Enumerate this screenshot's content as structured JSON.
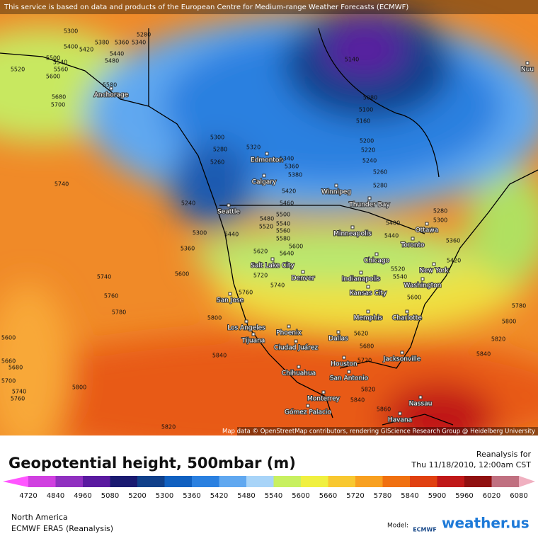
{
  "header": {
    "notice": "This service is based on data and products of the European Centre for Medium-range Weather Forecasts (ECMWF)"
  },
  "map": {
    "attribution": "Map data © OpenStreetMap contributors, rendering GIScience Research Group @ Heidelberg University",
    "cities": [
      "Anchorage",
      "Edmonton",
      "Calgary",
      "Winnipeg",
      "Seattle",
      "Thunder Bay",
      "Minneapolis",
      "Ottawa",
      "Toronto",
      "Chicago",
      "Salt Lake City",
      "Denver",
      "Indianapolis",
      "New York",
      "Washington",
      "Kansas City",
      "San Jose",
      "Memphis",
      "Charlotte",
      "Los Angeles",
      "Phoenix",
      "Dallas",
      "Tijuana",
      "Ciudad Juárez",
      "Jacksonville",
      "Houston",
      "San Antonio",
      "Chihuahua",
      "Monterrey",
      "Nassau",
      "Gómez Palacio",
      "Havana",
      "Nuu"
    ],
    "contour_labels": [
      5300,
      5280,
      5260,
      5240,
      5320,
      5340,
      5360,
      5380,
      5420,
      5460,
      5480,
      5500,
      5520,
      5540,
      5560,
      5580,
      5600,
      5620,
      5640,
      5720,
      5740,
      5760,
      5360,
      5300,
      5440,
      5600,
      5740,
      5760,
      5780,
      5800,
      5840,
      5800,
      5820,
      5740,
      5580,
      5680,
      5700,
      5600,
      5560,
      5540,
      5500,
      5480,
      5440,
      5420,
      5400,
      5380,
      5360,
      5340,
      5300,
      5280,
      5520,
      5140,
      5080,
      5100,
      5160,
      5200,
      5220,
      5240,
      5260,
      5280,
      5280,
      5300,
      5440,
      5400,
      5520,
      5540,
      5600,
      5620,
      5680,
      5720,
      5820,
      5840,
      5860,
      5780,
      5800,
      5820,
      5840,
      5600,
      5660,
      5680,
      5700,
      5740,
      5760,
      5420,
      5360
    ]
  },
  "panel": {
    "title": "Geopotential height, 500mbar (m)",
    "valid_label": "Reanalysis for",
    "valid_time": "Thu 11/18/2010, 12:00am CST",
    "region": "North America",
    "model_name": "ECMWF ERA5 (Reanalysis)",
    "model_label": "Model:",
    "model_logo": "ECMWF",
    "brand": "weather.us"
  },
  "colorbar": {
    "labels": [
      4720,
      4840,
      4960,
      5080,
      5200,
      5300,
      5360,
      5420,
      5480,
      5540,
      5600,
      5660,
      5720,
      5780,
      5840,
      5900,
      5960,
      6020,
      6080
    ],
    "colors": [
      "#ff55ff",
      "#d040e0",
      "#9030c0",
      "#5a1aa0",
      "#1a1a70",
      "#10408a",
      "#1060c0",
      "#2a80e0",
      "#60a8f0",
      "#a8d4f8",
      "#c8f060",
      "#f0f040",
      "#f8c830",
      "#f8a020",
      "#f07010",
      "#e04010",
      "#c01818",
      "#901010",
      "#c07080",
      "#f0b0c0"
    ]
  }
}
